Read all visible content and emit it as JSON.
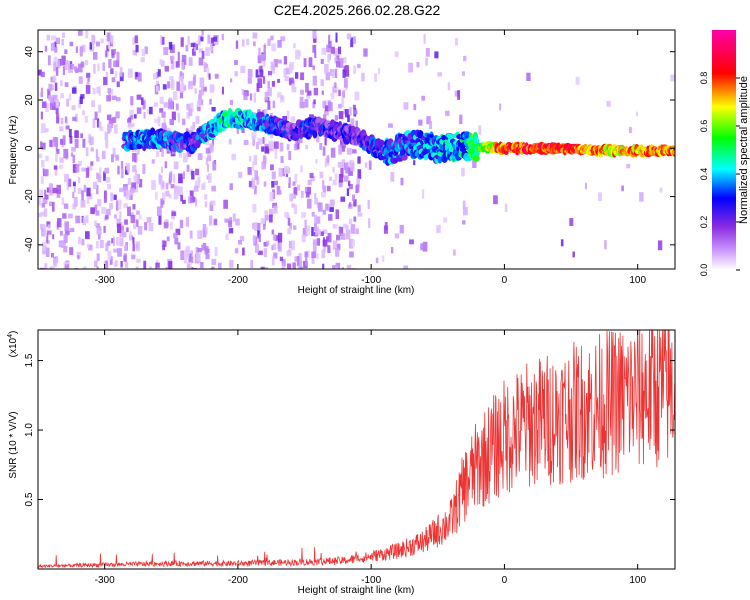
{
  "title": "C2E4.2025.266.02.28.G22",
  "chart_data": [
    {
      "type": "heatmap",
      "name": "spectrogram",
      "xlabel": "Height of straight line (km)",
      "ylabel": "Frequency (Hz)",
      "xlim": [
        -350,
        128
      ],
      "ylim": [
        -50,
        49
      ],
      "xticks": [
        -300,
        -200,
        -100,
        0,
        100
      ],
      "yticks": [
        -40,
        -20,
        0,
        20,
        40
      ],
      "xtick_labels": [
        "-300",
        "-200",
        "-100",
        "0",
        "100"
      ],
      "ytick_labels": [
        "-40",
        "-20",
        "0",
        "20",
        "40"
      ],
      "colorbar": {
        "label": "Normalized spectral amplitude",
        "range": [
          0,
          1
        ],
        "ticks": [
          0.0,
          0.2,
          0.4,
          0.6,
          0.8
        ],
        "tick_labels": [
          "0.0",
          "0.2",
          "0.4",
          "0.6",
          "0.8"
        ],
        "colors": [
          "#ffffff",
          "#cc99ff",
          "#8a2be2",
          "#0000ff",
          "#00ffff",
          "#00ff00",
          "#ffff00",
          "#ff0000",
          "#ff00aa"
        ]
      },
      "signal_track": [
        {
          "x": -285,
          "y": 3,
          "amp": 0.3
        },
        {
          "x": -260,
          "y": 4,
          "amp": 0.35
        },
        {
          "x": -235,
          "y": 2,
          "amp": 0.2
        },
        {
          "x": -210,
          "y": 12,
          "amp": 0.45
        },
        {
          "x": -190,
          "y": 12,
          "amp": 0.35
        },
        {
          "x": -160,
          "y": 7,
          "amp": 0.2
        },
        {
          "x": -140,
          "y": 9,
          "amp": 0.25
        },
        {
          "x": -110,
          "y": 5,
          "amp": 0.2
        },
        {
          "x": -90,
          "y": -2,
          "amp": 0.3
        },
        {
          "x": -70,
          "y": 2,
          "amp": 0.3
        },
        {
          "x": -50,
          "y": 0,
          "amp": 0.35
        },
        {
          "x": -30,
          "y": 1,
          "amp": 0.4
        },
        {
          "x": 0,
          "y": 0,
          "amp": 0.8
        },
        {
          "x": 40,
          "y": 0,
          "amp": 0.85
        },
        {
          "x": 80,
          "y": -1,
          "amp": 0.7
        },
        {
          "x": 120,
          "y": -1,
          "amp": 0.75
        }
      ]
    },
    {
      "type": "line",
      "name": "snr",
      "xlabel": "Height of straight line (km)",
      "ylabel": "SNR (10 * V/V)",
      "y_multiplier_label": "(x10",
      "y_multiplier_exponent": "4",
      "y_multiplier_close": ")",
      "xlim": [
        -350,
        128
      ],
      "ylim": [
        0,
        1.72
      ],
      "xticks": [
        -300,
        -200,
        -100,
        0,
        100
      ],
      "yticks": [
        0.5,
        1.0,
        1.5
      ],
      "xtick_labels": [
        "-300",
        "-200",
        "-100",
        "0",
        "100"
      ],
      "ytick_labels": [
        "0.5",
        "1.0",
        "1.5"
      ],
      "color": "#ee3333",
      "series": [
        {
          "name": "SNR",
          "x": [
            -350,
            -300,
            -250,
            -200,
            -150,
            -120,
            -100,
            -80,
            -60,
            -40,
            -30,
            -20,
            -10,
            0,
            10,
            20,
            40,
            60,
            80,
            100,
            110,
            128
          ],
          "y": [
            0.02,
            0.03,
            0.04,
            0.04,
            0.05,
            0.06,
            0.09,
            0.13,
            0.2,
            0.35,
            0.6,
            0.75,
            0.85,
            0.95,
            1.0,
            1.05,
            1.1,
            1.15,
            1.2,
            1.25,
            1.3,
            1.3
          ]
        }
      ]
    }
  ]
}
